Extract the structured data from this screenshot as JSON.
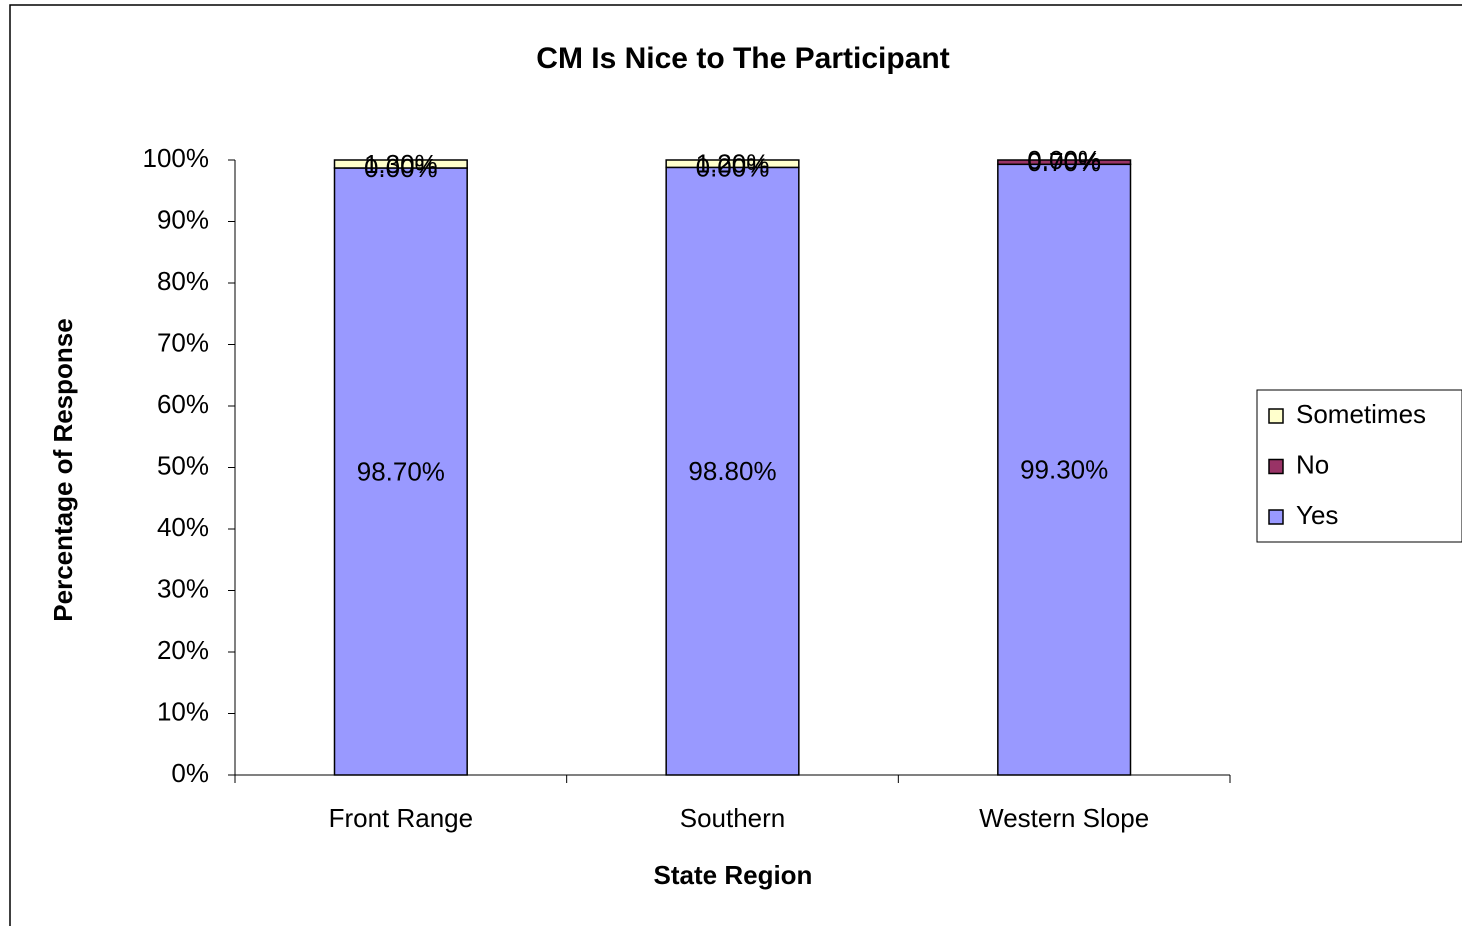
{
  "chart_data": {
    "type": "bar",
    "stacked": true,
    "title": "CM Is Nice to The Participant",
    "xlabel": "State Region",
    "ylabel": "Percentage of Response",
    "categories": [
      "Front Range",
      "Southern",
      "Western Slope"
    ],
    "series": [
      {
        "name": "Yes",
        "color": "#9999ff",
        "values": [
          98.7,
          98.8,
          99.3
        ],
        "value_labels": [
          "98.70%",
          "98.80%",
          "99.30%"
        ]
      },
      {
        "name": "No",
        "color": "#993366",
        "values": [
          0,
          0,
          0.7
        ],
        "value_labels": [
          "0.00%",
          "0.00%",
          "0.70%"
        ]
      },
      {
        "name": "Sometimes",
        "color": "#ffffcc",
        "values": [
          1.3,
          1.2,
          0
        ],
        "value_labels": [
          "1.30%",
          "1.20%",
          "0.00%"
        ]
      }
    ],
    "ylim": [
      0,
      100
    ],
    "yticks": [
      {
        "value": 0,
        "label": "0%"
      },
      {
        "value": 10,
        "label": "10%"
      },
      {
        "value": 20,
        "label": "20%"
      },
      {
        "value": 30,
        "label": "30%"
      },
      {
        "value": 40,
        "label": "40%"
      },
      {
        "value": 50,
        "label": "50%"
      },
      {
        "value": 60,
        "label": "60%"
      },
      {
        "value": 70,
        "label": "70%"
      },
      {
        "value": 80,
        "label": "80%"
      },
      {
        "value": 90,
        "label": "90%"
      },
      {
        "value": 100,
        "label": "100%"
      }
    ],
    "legend": "right"
  }
}
